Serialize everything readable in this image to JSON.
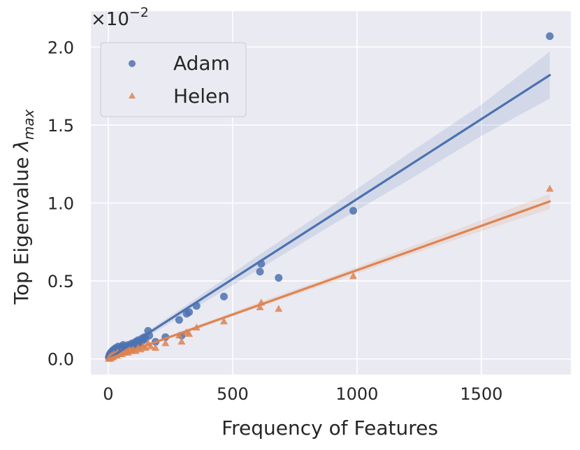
{
  "chart_data": {
    "type": "scatter",
    "xlabel": "Frequency of Features",
    "ylabel": "Top Eigenvalue",
    "ylabel_symbol": "λ",
    "ylabel_subscript": "max",
    "y_multiplier_base": "×10",
    "y_multiplier_exp": "−2",
    "xlim": [
      -70,
      1860
    ],
    "ylim": [
      -0.1,
      2.23
    ],
    "x_ticks": [
      0,
      500,
      1000,
      1500
    ],
    "x_tick_labels": [
      "0",
      "500",
      "1000",
      "1500"
    ],
    "y_ticks": [
      0.0,
      0.5,
      1.0,
      1.5,
      2.0
    ],
    "y_tick_labels": [
      "0.0",
      "0.5",
      "1.0",
      "1.5",
      "2.0"
    ],
    "grid": true,
    "legend_position": "top-left",
    "series": [
      {
        "name": "Adam",
        "marker": "circle",
        "color": "#4c72b0",
        "fit": {
          "x": [
            0,
            1775
          ],
          "y": [
            0.0,
            1.82
          ]
        },
        "band": {
          "x": [
            0,
            300,
            600,
            900,
            1200,
            1500,
            1775
          ],
          "lower": [
            -0.01,
            0.28,
            0.57,
            0.86,
            1.14,
            1.43,
            1.67
          ],
          "upper": [
            0.01,
            0.33,
            0.66,
            0.98,
            1.31,
            1.63,
            1.97
          ]
        },
        "points": [
          [
            2,
            0.01
          ],
          [
            4,
            0.02
          ],
          [
            6,
            0.03
          ],
          [
            8,
            0.02
          ],
          [
            10,
            0.04
          ],
          [
            12,
            0.03
          ],
          [
            15,
            0.05
          ],
          [
            18,
            0.02
          ],
          [
            20,
            0.04
          ],
          [
            22,
            0.06
          ],
          [
            25,
            0.03
          ],
          [
            28,
            0.05
          ],
          [
            30,
            0.07
          ],
          [
            33,
            0.04
          ],
          [
            35,
            0.06
          ],
          [
            38,
            0.05
          ],
          [
            40,
            0.08
          ],
          [
            42,
            0.06
          ],
          [
            45,
            0.05
          ],
          [
            48,
            0.07
          ],
          [
            50,
            0.06
          ],
          [
            55,
            0.08
          ],
          [
            58,
            0.07
          ],
          [
            60,
            0.09
          ],
          [
            65,
            0.07
          ],
          [
            70,
            0.08
          ],
          [
            75,
            0.06
          ],
          [
            80,
            0.09
          ],
          [
            85,
            0.08
          ],
          [
            90,
            0.07
          ],
          [
            95,
            0.1
          ],
          [
            100,
            0.09
          ],
          [
            105,
            0.08
          ],
          [
            110,
            0.11
          ],
          [
            115,
            0.1
          ],
          [
            120,
            0.12
          ],
          [
            125,
            0.11
          ],
          [
            130,
            0.1
          ],
          [
            135,
            0.13
          ],
          [
            140,
            0.12
          ],
          [
            145,
            0.14
          ],
          [
            150,
            0.13
          ],
          [
            160,
            0.18
          ],
          [
            165,
            0.15
          ],
          [
            190,
            0.11
          ],
          [
            230,
            0.14
          ],
          [
            285,
            0.25
          ],
          [
            295,
            0.15
          ],
          [
            315,
            0.29
          ],
          [
            325,
            0.3
          ],
          [
            355,
            0.34
          ],
          [
            465,
            0.4
          ],
          [
            610,
            0.56
          ],
          [
            615,
            0.61
          ],
          [
            685,
            0.52
          ],
          [
            985,
            0.95
          ],
          [
            1775,
            2.07
          ]
        ]
      },
      {
        "name": "Helen",
        "marker": "triangle",
        "color": "#dd8452",
        "fit": {
          "x": [
            0,
            1775
          ],
          "y": [
            0.0,
            1.01
          ]
        },
        "band": {
          "x": [
            0,
            300,
            600,
            900,
            1200,
            1500,
            1775
          ],
          "lower": [
            -0.005,
            0.16,
            0.33,
            0.49,
            0.66,
            0.82,
            0.96
          ],
          "upper": [
            0.005,
            0.18,
            0.36,
            0.53,
            0.71,
            0.89,
            1.06
          ]
        },
        "points": [
          [
            2,
            0.0
          ],
          [
            5,
            0.01
          ],
          [
            8,
            0.01
          ],
          [
            10,
            0.0
          ],
          [
            12,
            0.02
          ],
          [
            15,
            0.01
          ],
          [
            18,
            0.02
          ],
          [
            20,
            0.01
          ],
          [
            22,
            0.03
          ],
          [
            25,
            0.02
          ],
          [
            28,
            0.02
          ],
          [
            30,
            0.03
          ],
          [
            35,
            0.02
          ],
          [
            38,
            0.04
          ],
          [
            40,
            0.03
          ],
          [
            45,
            0.03
          ],
          [
            50,
            0.04
          ],
          [
            55,
            0.03
          ],
          [
            60,
            0.04
          ],
          [
            65,
            0.05
          ],
          [
            70,
            0.04
          ],
          [
            75,
            0.05
          ],
          [
            80,
            0.04
          ],
          [
            85,
            0.06
          ],
          [
            90,
            0.05
          ],
          [
            95,
            0.05
          ],
          [
            100,
            0.06
          ],
          [
            110,
            0.05
          ],
          [
            120,
            0.07
          ],
          [
            130,
            0.06
          ],
          [
            140,
            0.08
          ],
          [
            150,
            0.07
          ],
          [
            160,
            0.1
          ],
          [
            170,
            0.08
          ],
          [
            190,
            0.07
          ],
          [
            230,
            0.1
          ],
          [
            285,
            0.15
          ],
          [
            295,
            0.11
          ],
          [
            315,
            0.17
          ],
          [
            325,
            0.16
          ],
          [
            355,
            0.2
          ],
          [
            465,
            0.24
          ],
          [
            610,
            0.33
          ],
          [
            615,
            0.36
          ],
          [
            685,
            0.32
          ],
          [
            985,
            0.53
          ],
          [
            1775,
            1.09
          ]
        ]
      }
    ]
  }
}
